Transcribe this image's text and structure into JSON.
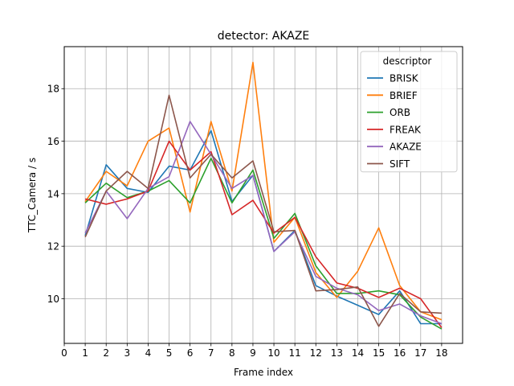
{
  "chart_data": {
    "type": "line",
    "title": "detector: AKAZE",
    "xlabel": "Frame index",
    "ylabel": "TTC_Camera / s",
    "xlim": [
      0,
      19
    ],
    "ylim": [
      8.3,
      19.6
    ],
    "xticks": [
      0,
      1,
      2,
      3,
      4,
      5,
      6,
      7,
      8,
      9,
      10,
      11,
      12,
      13,
      14,
      15,
      16,
      17,
      18
    ],
    "yticks": [
      10,
      12,
      14,
      16,
      18
    ],
    "grid": true,
    "legend_title": "descriptor",
    "legend_position": "top-right",
    "x": [
      1,
      2,
      3,
      4,
      5,
      6,
      7,
      8,
      9,
      10,
      11,
      12,
      13,
      14,
      15,
      16,
      17,
      18
    ],
    "series": [
      {
        "name": "BRISK",
        "color": "#1f77b4",
        "values": [
          12.4,
          15.1,
          14.2,
          14.05,
          15.05,
          14.9,
          16.4,
          13.7,
          14.7,
          11.8,
          12.6,
          10.5,
          10.1,
          9.75,
          9.4,
          10.3,
          9.05,
          9.05
        ]
      },
      {
        "name": "BRIEF",
        "color": "#ff7f0e",
        "values": [
          13.7,
          14.85,
          14.3,
          16.0,
          16.5,
          13.3,
          16.75,
          14.1,
          19.0,
          12.15,
          13.1,
          11.0,
          10.05,
          11.05,
          12.7,
          10.5,
          9.5,
          9.2
        ]
      },
      {
        "name": "ORB",
        "color": "#2ca02c",
        "values": [
          13.65,
          14.4,
          13.85,
          14.1,
          14.5,
          13.65,
          15.35,
          13.65,
          14.9,
          12.3,
          13.25,
          11.25,
          10.2,
          10.2,
          10.3,
          10.15,
          9.3,
          8.85
        ]
      },
      {
        "name": "FREAK",
        "color": "#d62728",
        "values": [
          13.8,
          13.6,
          13.8,
          14.1,
          16.0,
          14.9,
          15.6,
          13.2,
          13.75,
          12.5,
          13.1,
          11.6,
          10.6,
          10.4,
          10.05,
          10.4,
          10.0,
          8.9
        ]
      },
      {
        "name": "AKAZE",
        "color": "#9467bd",
        "values": [
          12.5,
          14.1,
          13.05,
          14.2,
          14.65,
          16.75,
          15.5,
          14.2,
          14.7,
          11.8,
          12.55,
          10.85,
          10.4,
          10.15,
          9.55,
          9.8,
          9.35,
          9.05
        ]
      },
      {
        "name": "SIFT",
        "color": "#8c564b",
        "values": [
          12.35,
          14.1,
          14.85,
          14.2,
          17.75,
          14.6,
          15.5,
          14.6,
          15.25,
          12.55,
          12.6,
          10.3,
          10.35,
          10.45,
          8.95,
          10.2,
          9.5,
          9.45
        ]
      }
    ]
  }
}
